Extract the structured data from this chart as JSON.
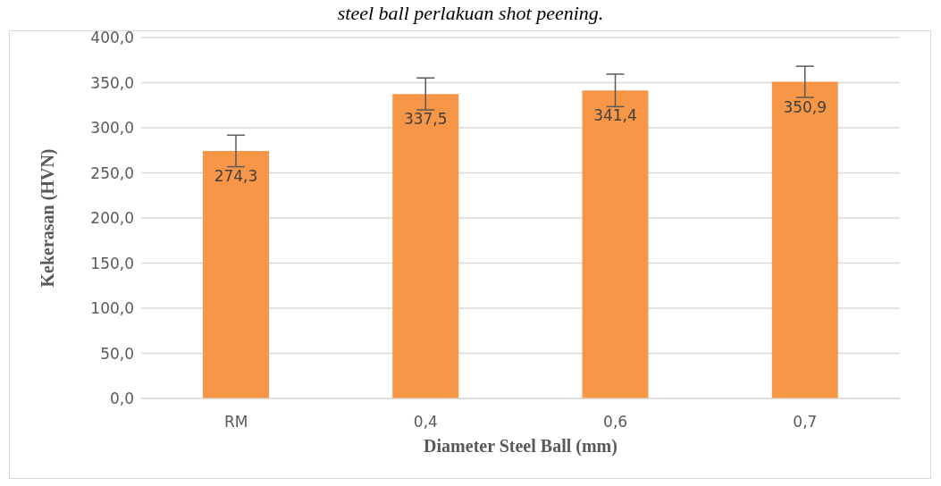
{
  "chart_data": {
    "type": "bar",
    "title": "steel ball perlakuan shot peening.",
    "xlabel": "Diameter Steel Ball (mm)",
    "ylabel": "Kekerasan (HVN)",
    "categories": [
      "RM",
      "0,4",
      "0,6",
      "0,7"
    ],
    "values": [
      274.3,
      337.5,
      341.4,
      350.9
    ],
    "value_labels": [
      "274,3",
      "337,5",
      "341,4",
      "350,9"
    ],
    "errors": [
      17.5,
      17.7,
      18.0,
      17.3
    ],
    "color": "#f79646",
    "ylim": [
      0,
      400
    ],
    "yticks": [
      {
        "value": 0,
        "label": "0,0"
      },
      {
        "value": 50,
        "label": "50,0"
      },
      {
        "value": 100,
        "label": "100,0"
      },
      {
        "value": 150,
        "label": "150,0"
      },
      {
        "value": 200,
        "label": "200,0"
      },
      {
        "value": 250,
        "label": "250,0"
      },
      {
        "value": 300,
        "label": "300,0"
      },
      {
        "value": 350,
        "label": "350,0"
      },
      {
        "value": 400,
        "label": "400,0"
      }
    ],
    "grid": "y"
  }
}
